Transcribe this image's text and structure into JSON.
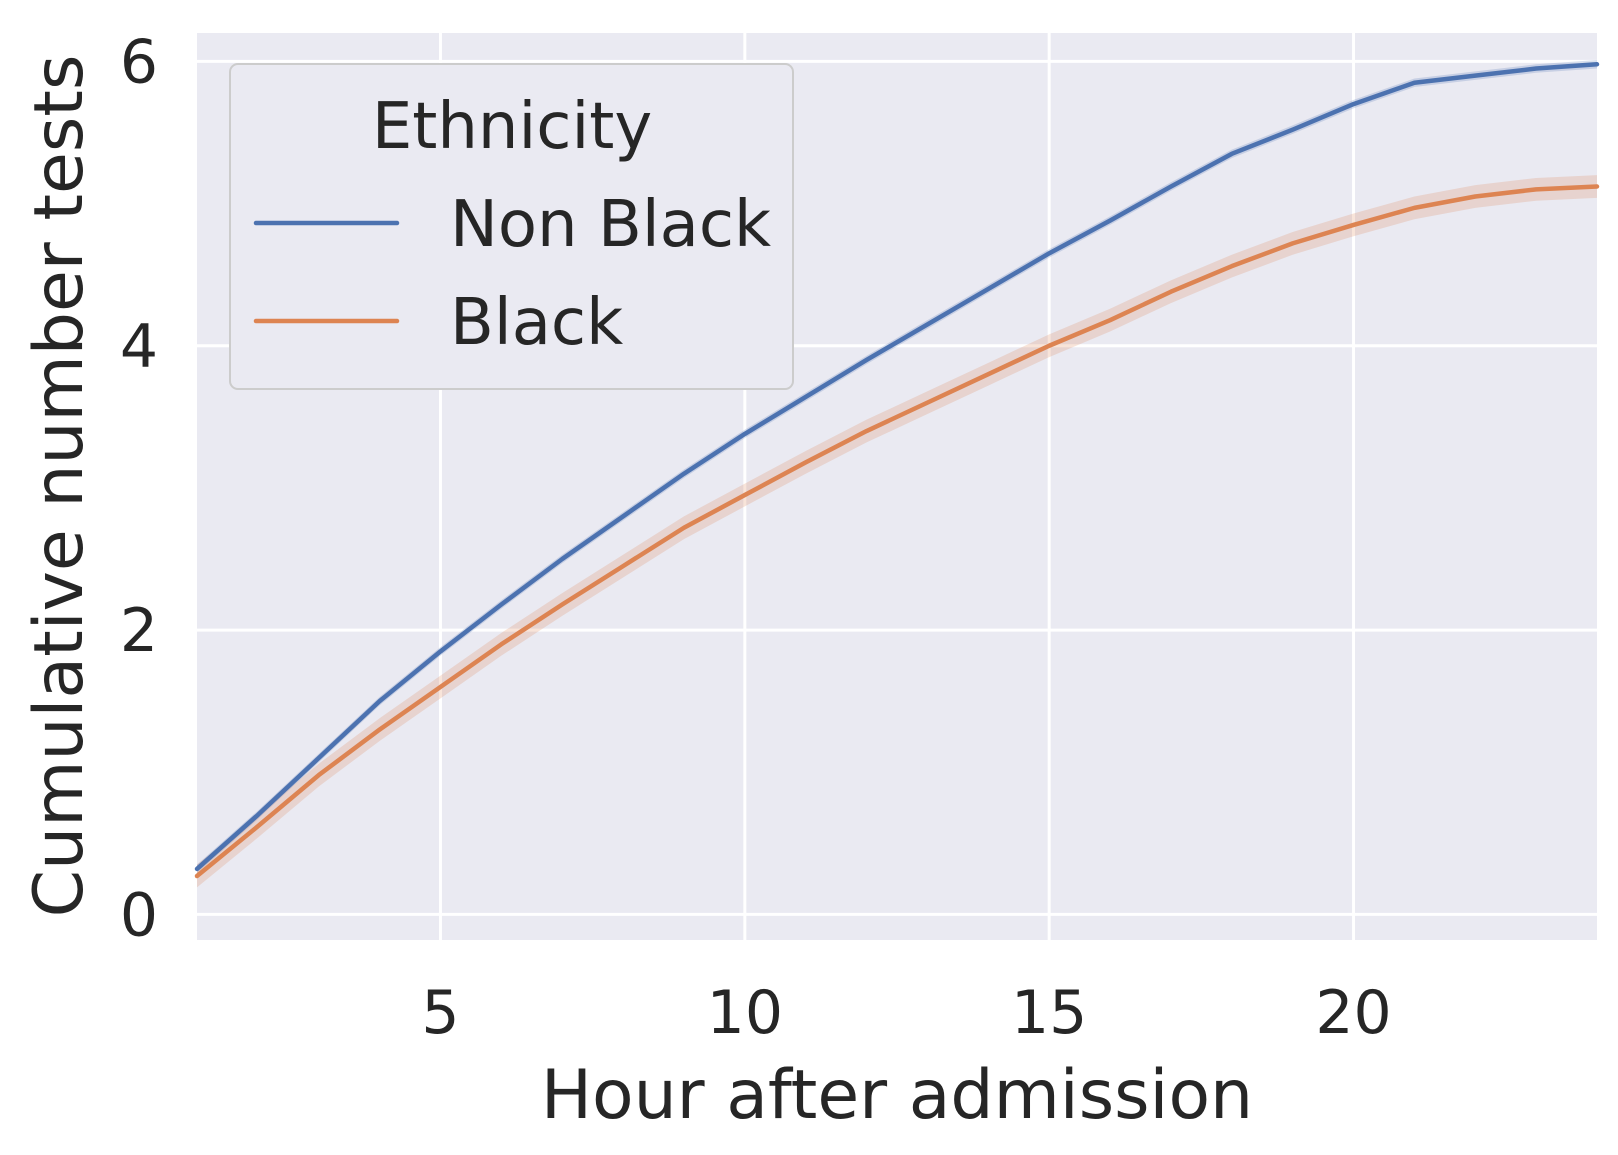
{
  "chart_data": {
    "type": "line",
    "title": "",
    "xlabel": "Hour after admission",
    "ylabel": "Cumulative number tests",
    "xlim": [
      1,
      24
    ],
    "ylim": [
      -0.18,
      6.2
    ],
    "xticks": [
      5,
      10,
      15,
      20
    ],
    "xtick_labels": [
      "5",
      "10",
      "15",
      "20"
    ],
    "yticks": [
      0,
      2,
      4,
      6
    ],
    "ytick_labels": [
      "0",
      "2",
      "4",
      "6"
    ],
    "grid": true,
    "background": "#eaeaf2",
    "legend": {
      "title": "Ethnicity",
      "placement": "top-left"
    },
    "x": [
      1,
      2,
      3,
      4,
      5,
      6,
      7,
      8,
      9,
      10,
      11,
      12,
      13,
      14,
      15,
      16,
      17,
      18,
      19,
      20,
      21,
      22,
      23,
      24
    ],
    "series": [
      {
        "name": "Non Black",
        "color": "#4c72b0",
        "values": [
          0.32,
          0.7,
          1.1,
          1.5,
          1.85,
          2.18,
          2.5,
          2.8,
          3.1,
          3.38,
          3.64,
          3.9,
          4.15,
          4.4,
          4.65,
          4.88,
          5.12,
          5.35,
          5.52,
          5.7,
          5.85,
          5.9,
          5.95,
          5.98
        ],
        "ci_half_width": 0.03
      },
      {
        "name": "Black",
        "color": "#dd8452",
        "values": [
          0.27,
          0.62,
          0.98,
          1.3,
          1.6,
          1.9,
          2.18,
          2.45,
          2.72,
          2.95,
          3.18,
          3.4,
          3.6,
          3.8,
          4.0,
          4.18,
          4.38,
          4.56,
          4.72,
          4.85,
          4.97,
          5.05,
          5.1,
          5.12
        ],
        "ci_half_width": 0.08
      }
    ]
  }
}
